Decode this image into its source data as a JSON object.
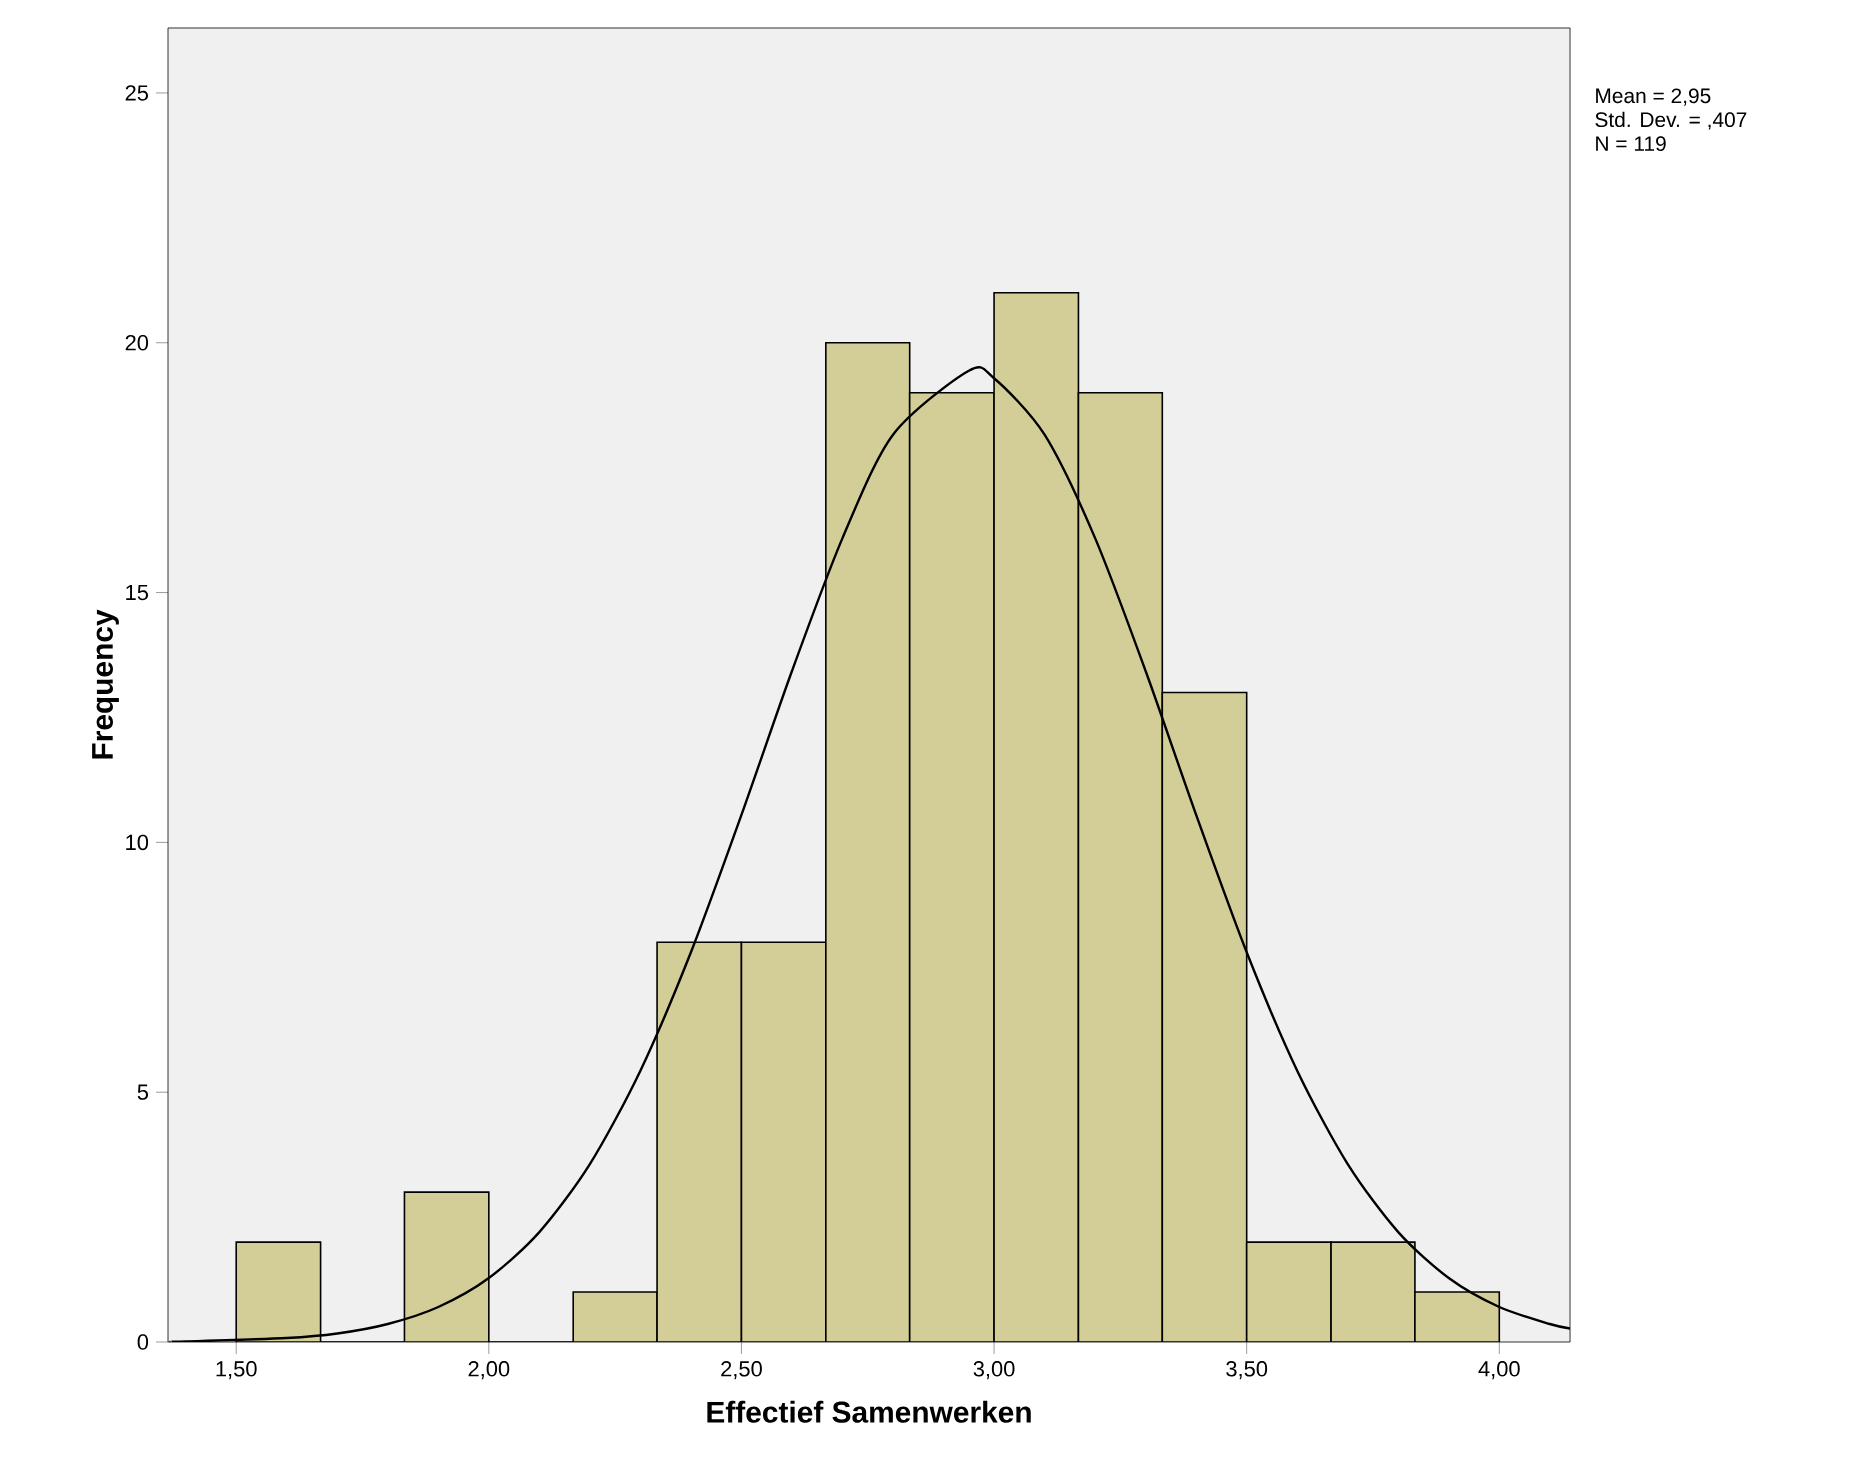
{
  "chart_data": {
    "type": "histogram",
    "xlabel": "Effectief Samenwerken",
    "ylabel": "Frequency",
    "bins": [
      1.5,
      1.667,
      1.833,
      2,
      2.167,
      2.333,
      2.5,
      2.667,
      2.833,
      3,
      3.167,
      3.333,
      3.5,
      3.667,
      3.833,
      4
    ],
    "values": [
      2,
      0,
      3,
      0,
      1,
      8,
      8,
      20,
      19,
      21,
      19,
      13,
      2,
      2,
      1
    ],
    "color": "#d3ce97",
    "series": [
      {
        "type": "line",
        "color": "#000000",
        "x": [
          1.37,
          1.4,
          1.6,
          1.7,
          1.8,
          1.9,
          2.0,
          2.1,
          2.2,
          2.3,
          2.4,
          2.5,
          2.6,
          2.7,
          2.8,
          2.95,
          3.0,
          3.1,
          3.2,
          3.3,
          3.4,
          3.5,
          3.6,
          3.7,
          3.8,
          3.9,
          4.0,
          4.1,
          4.14
        ],
        "values": [
          0.01,
          0.01,
          0.08,
          0.17,
          0.36,
          0.7,
          1.28,
          2.2,
          3.56,
          5.43,
          7.8,
          10.55,
          13.43,
          16.09,
          18.16,
          19.44,
          19.29,
          18.16,
          16.09,
          13.43,
          10.55,
          7.8,
          5.43,
          3.56,
          2.2,
          1.28,
          0.7,
          0.36,
          0.27
        ]
      }
    ],
    "xlim": [
      1.365,
      4.14
    ],
    "ylim": [
      0,
      26.3
    ],
    "xticks": [
      {
        "value": 1.5,
        "label": "1,50"
      },
      {
        "value": 2,
        "label": "2,00"
      },
      {
        "value": 2.5,
        "label": "2,50"
      },
      {
        "value": 3,
        "label": "3,00"
      },
      {
        "value": 3.5,
        "label": "3,50"
      },
      {
        "value": 4,
        "label": "4,00"
      }
    ],
    "yticks": [
      0,
      5,
      10,
      15,
      20,
      25
    ],
    "annotations": [
      "Mean = 2,95",
      "Std. Dev. = ,407",
      "N = 119"
    ]
  }
}
